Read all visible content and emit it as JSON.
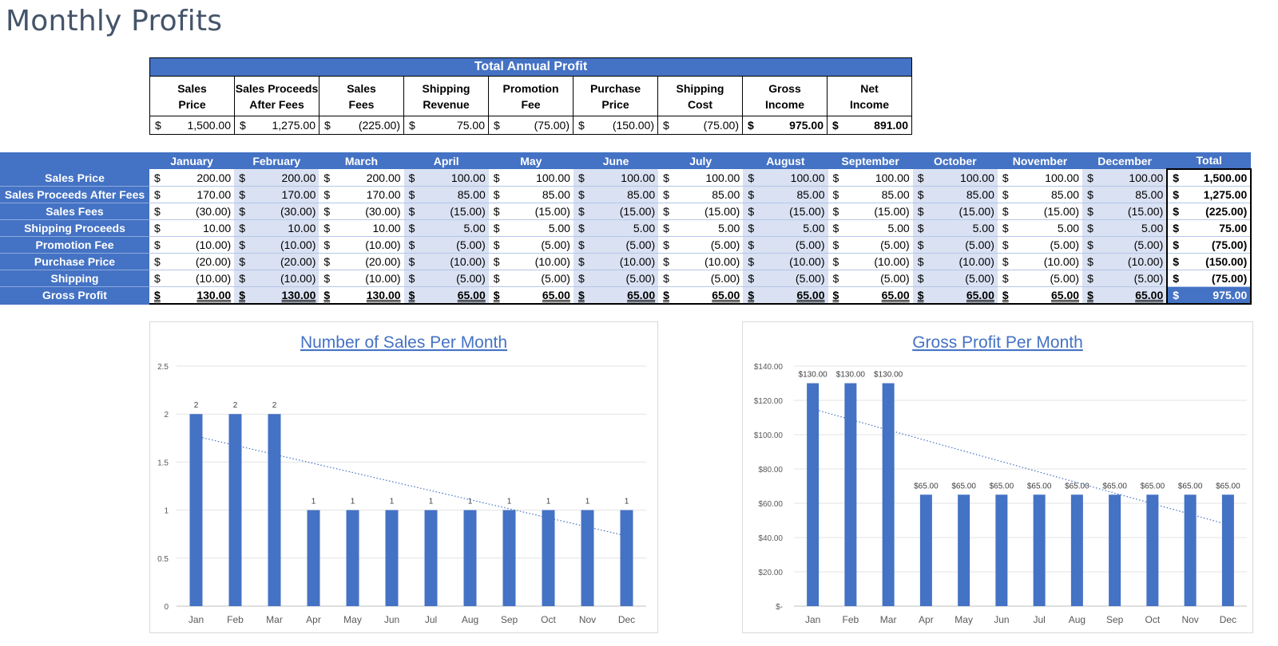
{
  "page_title": "Monthly Profits",
  "summary": {
    "header": "Total Annual Profit",
    "columns": [
      {
        "label1": "Sales",
        "label2": "Price",
        "sym": "$",
        "value": "1,500.00",
        "bold": false
      },
      {
        "label1": "Sales Proceeds",
        "label2": "After Fees",
        "sym": "$",
        "value": "1,275.00",
        "bold": false
      },
      {
        "label1": "Sales",
        "label2": "Fees",
        "sym": "$",
        "value": "(225.00)",
        "bold": false
      },
      {
        "label1": "Shipping",
        "label2": "Revenue",
        "sym": "$",
        "value": "75.00",
        "bold": false
      },
      {
        "label1": "Promotion",
        "label2": "Fee",
        "sym": "$",
        "value": "(75.00)",
        "bold": false
      },
      {
        "label1": "Purchase",
        "label2": "Price",
        "sym": "$",
        "value": "(150.00)",
        "bold": false
      },
      {
        "label1": "Shipping",
        "label2": "Cost",
        "sym": "$",
        "value": "(75.00)",
        "bold": false
      },
      {
        "label1": "Gross",
        "label2": "Income",
        "sym": "$",
        "value": "975.00",
        "bold": true
      },
      {
        "label1": "Net",
        "label2": "Income",
        "sym": "$",
        "value": "891.00",
        "bold": true
      }
    ]
  },
  "monthly": {
    "headers": [
      "January",
      "February",
      "March",
      "April",
      "May",
      "June",
      "July",
      "August",
      "September",
      "October",
      "November",
      "December",
      "Total"
    ],
    "currency_symbol": "$",
    "rows": [
      {
        "label": "Sales Price",
        "values": [
          "200.00",
          "200.00",
          "200.00",
          "100.00",
          "100.00",
          "100.00",
          "100.00",
          "100.00",
          "100.00",
          "100.00",
          "100.00",
          "100.00",
          "1,500.00"
        ]
      },
      {
        "label": "Sales Proceeds After Fees",
        "values": [
          "170.00",
          "170.00",
          "170.00",
          "85.00",
          "85.00",
          "85.00",
          "85.00",
          "85.00",
          "85.00",
          "85.00",
          "85.00",
          "85.00",
          "1,275.00"
        ]
      },
      {
        "label": "Sales Fees",
        "values": [
          "(30.00)",
          "(30.00)",
          "(30.00)",
          "(15.00)",
          "(15.00)",
          "(15.00)",
          "(15.00)",
          "(15.00)",
          "(15.00)",
          "(15.00)",
          "(15.00)",
          "(15.00)",
          "(225.00)"
        ]
      },
      {
        "label": "Shipping Proceeds",
        "values": [
          "10.00",
          "10.00",
          "10.00",
          "5.00",
          "5.00",
          "5.00",
          "5.00",
          "5.00",
          "5.00",
          "5.00",
          "5.00",
          "5.00",
          "75.00"
        ]
      },
      {
        "label": "Promotion Fee",
        "values": [
          "(10.00)",
          "(10.00)",
          "(10.00)",
          "(5.00)",
          "(5.00)",
          "(5.00)",
          "(5.00)",
          "(5.00)",
          "(5.00)",
          "(5.00)",
          "(5.00)",
          "(5.00)",
          "(75.00)"
        ]
      },
      {
        "label": "Purchase Price",
        "values": [
          "(20.00)",
          "(20.00)",
          "(20.00)",
          "(10.00)",
          "(10.00)",
          "(10.00)",
          "(10.00)",
          "(10.00)",
          "(10.00)",
          "(10.00)",
          "(10.00)",
          "(10.00)",
          "(150.00)"
        ]
      },
      {
        "label": "Shipping",
        "values": [
          "(10.00)",
          "(10.00)",
          "(10.00)",
          "(5.00)",
          "(5.00)",
          "(5.00)",
          "(5.00)",
          "(5.00)",
          "(5.00)",
          "(5.00)",
          "(5.00)",
          "(5.00)",
          "(75.00)"
        ]
      },
      {
        "label": "Gross Profit",
        "values": [
          "130.00",
          "130.00",
          "130.00",
          "65.00",
          "65.00",
          "65.00",
          "65.00",
          "65.00",
          "65.00",
          "65.00",
          "65.00",
          "65.00",
          "975.00"
        ]
      }
    ]
  },
  "colors": {
    "accent": "#4472c4",
    "shade": "#d9e1f2",
    "title": "#44546a"
  },
  "chart_data": [
    {
      "type": "bar",
      "title": "Number of Sales Per Month",
      "categories": [
        "Jan",
        "Feb",
        "Mar",
        "Apr",
        "May",
        "Jun",
        "Jul",
        "Aug",
        "Sep",
        "Oct",
        "Nov",
        "Dec"
      ],
      "values": [
        2,
        2,
        2,
        1,
        1,
        1,
        1,
        1,
        1,
        1,
        1,
        1
      ],
      "data_labels": [
        "2",
        "2",
        "2",
        "1",
        "1",
        "1",
        "1",
        "1",
        "1",
        "1",
        "1",
        "1"
      ],
      "yticks": [
        "0",
        "0.5",
        "1",
        "1.5",
        "2",
        "2.5"
      ],
      "ylim": [
        0,
        2.5
      ],
      "trendline": "linear dotted",
      "grid": true,
      "legend": "none"
    },
    {
      "type": "bar",
      "title": "Gross Profit Per Month",
      "categories": [
        "Jan",
        "Feb",
        "Mar",
        "Apr",
        "May",
        "Jun",
        "Jul",
        "Aug",
        "Sep",
        "Oct",
        "Nov",
        "Dec"
      ],
      "values": [
        130,
        130,
        130,
        65,
        65,
        65,
        65,
        65,
        65,
        65,
        65,
        65
      ],
      "data_labels": [
        "$130.00",
        "$130.00",
        "$130.00",
        "$65.00",
        "$65.00",
        "$65.00",
        "$65.00",
        "$65.00",
        "$65.00",
        "$65.00",
        "$65.00",
        "$65.00"
      ],
      "yticks": [
        "$-",
        "$20.00",
        "$40.00",
        "$60.00",
        "$80.00",
        "$100.00",
        "$120.00",
        "$140.00"
      ],
      "ylim": [
        0,
        140
      ],
      "trendline": "linear dotted",
      "grid": true,
      "legend": "none"
    }
  ]
}
